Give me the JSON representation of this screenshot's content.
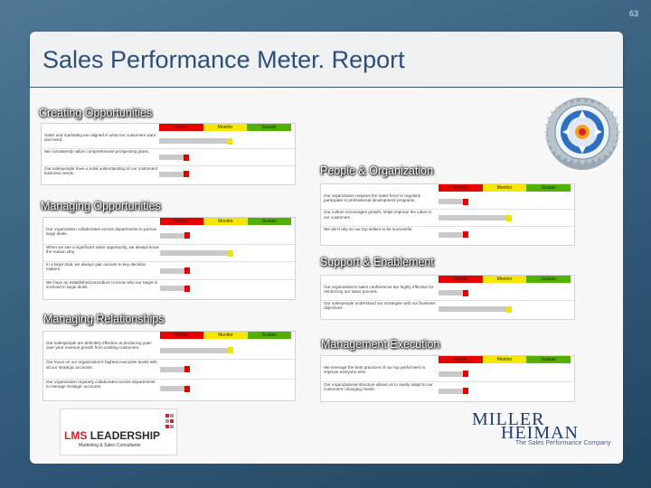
{
  "slide_number": "63",
  "title": "Sales Performance Meter. Report",
  "meter_headers": [
    "Perish",
    "Monitor",
    "Sustain"
  ],
  "sections": [
    {
      "label": "Creating Opportunities",
      "rows": [
        {
          "text": "Sales and marketing are aligned in what our customers want and need.",
          "level": "monitor"
        },
        {
          "text": "We consistently utilize comprehensive prospecting plans.",
          "level": "perish"
        },
        {
          "text": "Our salespeople have a solid understanding of our customers' business needs.",
          "level": "perish"
        }
      ]
    },
    {
      "label": "People & Organization",
      "rows": [
        {
          "text": "Our organization requires the sales force to regularly participate in professional development programs.",
          "level": "perish"
        },
        {
          "text": "Our culture encourages growth, helps improve the value to our customers.",
          "level": "monitor"
        },
        {
          "text": "We don't rely on our top sellers to be successful.",
          "level": "perish"
        }
      ]
    },
    {
      "label": "Managing Opportunities",
      "rows": [
        {
          "text": "Our organization collaborates across departments to pursue large deals.",
          "level": "perish"
        },
        {
          "text": "When we see a significant sales opportunity, we always know the reason why.",
          "level": "monitor"
        },
        {
          "text": "In a large deal, we always gain access to key decision makers.",
          "level": "perish"
        },
        {
          "text": "We have an established procedure to know who our target is involved in large deals.",
          "level": "perish"
        }
      ]
    },
    {
      "label": "Support & Enablement",
      "rows": [
        {
          "text": "Our organization's sales conferences are highly effective for reinforcing our sales process.",
          "level": "perish"
        },
        {
          "text": "Our salespeople understand our strategies with our business objectives.",
          "level": "monitor"
        }
      ]
    },
    {
      "label": "Managing Relationships",
      "rows": [
        {
          "text": "Our salespeople are definitely effective at producing year-over-year revenue growth from existing customers.",
          "level": "monitor"
        },
        {
          "text": "Our focus on our organization's highest executive levels with all our strategic accounts.",
          "level": "perish"
        },
        {
          "text": "Our organization regularly collaborates across departments to manage strategic accounts.",
          "level": "perish"
        }
      ]
    },
    {
      "label": "Management Execution",
      "rows": [
        {
          "text": "We leverage the best practices of our top performers to improve everyone else.",
          "level": "perish"
        },
        {
          "text": "Our organizational structure allows us to easily adapt to our customers' changing needs.",
          "level": "perish"
        }
      ]
    }
  ],
  "logos": {
    "lms_left": "LMS",
    "lms_right": "LEADERSHIP",
    "lms_tagline": "Marketing & Sales Consultants",
    "mh_line1": "MILLER",
    "mh_line2": "HEIMAN",
    "mh_tagline": "The Sales Performance Company"
  },
  "colors": {
    "perish": "#e60000",
    "monitor": "#f6e600",
    "sustain": "#52b000"
  }
}
